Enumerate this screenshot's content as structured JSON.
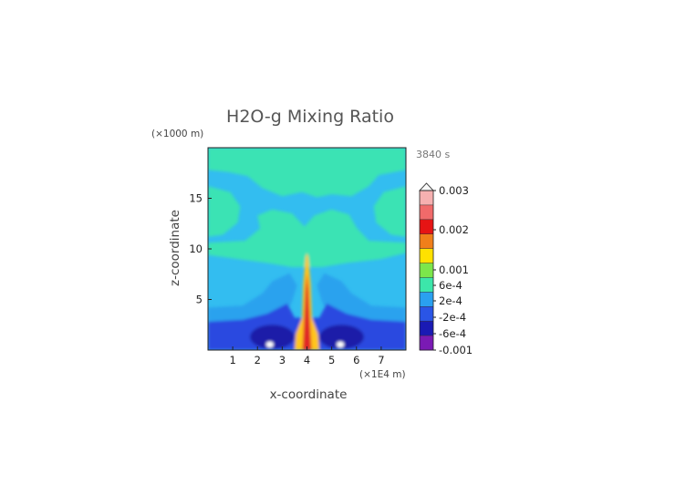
{
  "chart_data": {
    "type": "heatmap",
    "title": "H2O-g Mixing Ratio",
    "xlabel": "x-coordinate",
    "ylabel": "z-coordinate",
    "x_unit": "(×1E4 m)",
    "y_unit": "(×1000 m)",
    "time_label": "3840 s",
    "xlim": [
      0,
      8
    ],
    "ylim": [
      0,
      20
    ],
    "x_ticks": [
      "1",
      "2",
      "3",
      "4",
      "5",
      "6",
      "7"
    ],
    "y_ticks": [
      "5",
      "10",
      "15"
    ],
    "colorbar": {
      "tick_labels": [
        "0.003",
        "0.002",
        "0.001",
        "6e-4",
        "2e-4",
        "-2e-4",
        "-6e-4",
        "-0.001"
      ],
      "levels": [
        0.003,
        0.002,
        0.001,
        0.0006,
        0.0002,
        -0.0002,
        -0.0006,
        -0.001
      ],
      "colors": [
        "#f6b0b0",
        "#f06a6a",
        "#e61414",
        "#f07f1a",
        "#ffe100",
        "#7ce64b",
        "#3ce6aa",
        "#2aa0f0",
        "#2a55e6",
        "#1a1ab4",
        "#7a1ab4"
      ]
    },
    "field_colors": {
      "background": "#33bdf0",
      "band_upper": "#3ae3b4",
      "band_lower": "#2aa2ee",
      "near_surface": "#2b4ae0",
      "vortex": "#1c1fa8",
      "core": "#ffc41a",
      "peak": "#e02828",
      "eye": "#ffffff"
    }
  }
}
